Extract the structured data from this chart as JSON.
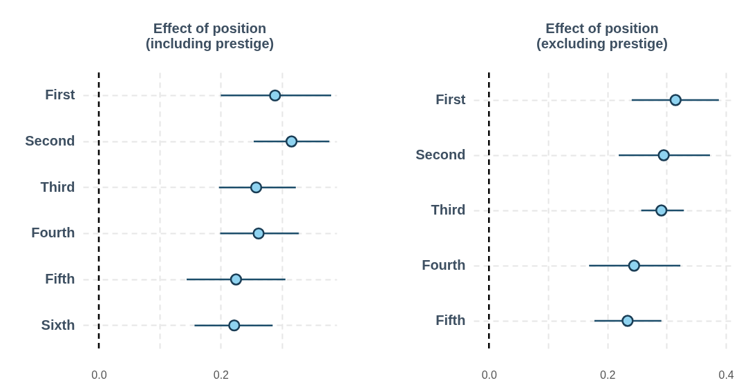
{
  "chart_data": [
    {
      "type": "scatter",
      "orientation": "horizontal",
      "title": "Effect of position\n(including prestige)",
      "categories": [
        "First",
        "Second",
        "Third",
        "Fourth",
        "Fifth",
        "Sixth"
      ],
      "series": [
        {
          "color": "#8fd3f0",
          "values": [
            0.289,
            0.316,
            0.258,
            0.262,
            0.225,
            0.222
          ],
          "errors": [
            [
              0.2,
              0.381
            ],
            [
              0.254,
              0.378
            ],
            [
              0.197,
              0.323
            ],
            [
              0.199,
              0.328
            ],
            [
              0.144,
              0.306
            ],
            [
              0.157,
              0.285
            ]
          ]
        }
      ],
      "xlim": [
        -0.026,
        0.39
      ],
      "xticks": [
        {
          "value": 0,
          "label": "0.0"
        },
        {
          "value": 0.1,
          "label": null
        },
        {
          "value": 0.2,
          "label": "0.2"
        },
        {
          "value": 0.3,
          "label": null
        }
      ],
      "ref_lines": [
        {
          "axis": "x",
          "value": 0,
          "color": "#000000",
          "line_style": "dashed"
        }
      ],
      "grid": true,
      "marker": "circle"
    },
    {
      "type": "scatter",
      "orientation": "horizontal",
      "title": "Effect of position\n(excluding prestige)",
      "categories": [
        "First",
        "Second",
        "Third",
        "Fourth",
        "Fifth"
      ],
      "series": [
        {
          "color": "#8fd3f0",
          "values": [
            0.315,
            0.295,
            0.291,
            0.245,
            0.234
          ],
          "errors": [
            [
              0.241,
              0.388
            ],
            [
              0.219,
              0.373
            ],
            [
              0.257,
              0.329
            ],
            [
              0.169,
              0.323
            ],
            [
              0.178,
              0.291
            ]
          ]
        }
      ],
      "xlim": [
        -0.026,
        0.408
      ],
      "xticks": [
        {
          "value": 0,
          "label": "0.0"
        },
        {
          "value": 0.1,
          "label": null
        },
        {
          "value": 0.2,
          "label": "0.2"
        },
        {
          "value": 0.3,
          "label": null
        },
        {
          "value": 0.4,
          "label": "0.4"
        }
      ],
      "ref_lines": [
        {
          "axis": "x",
          "value": 0,
          "color": "#000000",
          "line_style": "dashed"
        }
      ],
      "grid": true,
      "marker": "circle"
    }
  ]
}
